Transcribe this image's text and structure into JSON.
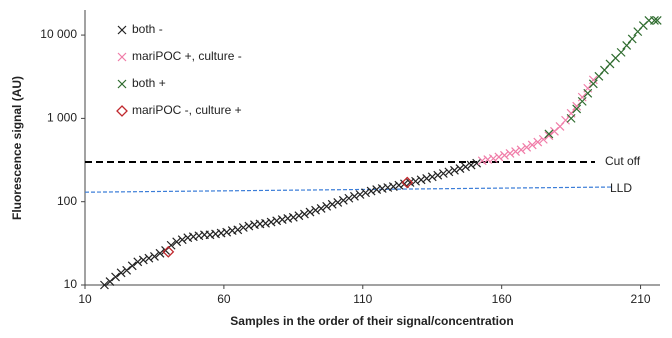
{
  "chart_data": {
    "type": "scatter",
    "x_label": "Samples in the order of their signal/concentration",
    "y_label": "Fluorescence signal (AU)",
    "xlim": [
      10,
      217
    ],
    "xticks": [
      10,
      60,
      110,
      160,
      210
    ],
    "ylim": [
      10,
      20000
    ],
    "log_y": true,
    "yticks": [
      10,
      100,
      {
        "value": 1000,
        "label": "1 000"
      },
      {
        "value": 10000,
        "label": "10 000"
      }
    ],
    "legend": "upper left",
    "series": [
      {
        "name": "both -",
        "color": "#222222",
        "marker": "x",
        "x": [
          17,
          19,
          21,
          23,
          25,
          27,
          29,
          31,
          33,
          35,
          37,
          39,
          41,
          43,
          45,
          47,
          49,
          51,
          53,
          55,
          57,
          59,
          61,
          63,
          65,
          67,
          69,
          71,
          73,
          75,
          77,
          79,
          81,
          83,
          85,
          87,
          89,
          91,
          93,
          95,
          97,
          99,
          101,
          103,
          105,
          107,
          109,
          111,
          113,
          115,
          117,
          119,
          121,
          123,
          125,
          127,
          129,
          131,
          133,
          135,
          137,
          139,
          141,
          143,
          145,
          147,
          149,
          151
        ],
        "values": [
          10,
          11,
          12.5,
          14,
          15,
          17,
          19,
          20,
          21,
          22,
          24,
          26,
          30,
          33,
          35,
          37,
          38,
          39,
          40,
          40,
          41,
          42,
          43,
          45,
          46,
          49,
          51,
          53,
          54,
          55,
          57,
          59,
          61,
          63,
          65,
          68,
          71,
          75,
          79,
          83,
          88,
          93,
          98,
          104,
          110,
          116,
          122,
          128,
          134,
          140,
          144,
          148,
          152,
          158,
          164,
          170,
          176,
          183,
          190,
          199,
          208,
          218,
          228,
          238,
          250,
          262,
          275,
          290
        ]
      },
      {
        "name": "mariPOC +, culture -",
        "color": "#f07ca8",
        "marker": "x",
        "x": [
          153,
          155,
          157,
          159,
          161,
          163,
          165,
          167,
          169,
          171,
          173,
          175,
          177,
          179,
          181,
          183,
          185,
          187,
          189,
          191,
          193
        ],
        "values": [
          310,
          320,
          330,
          345,
          360,
          380,
          400,
          420,
          450,
          480,
          520,
          560,
          620,
          700,
          800,
          950,
          1150,
          1400,
          1800,
          2300,
          2900
        ]
      },
      {
        "name": "both +",
        "color": "#2e6b2e",
        "marker": "x",
        "x": [
          177,
          185,
          187,
          189,
          191,
          193,
          195,
          197,
          199,
          201,
          203,
          205,
          207,
          209,
          211,
          213,
          215,
          216
        ],
        "values": [
          650,
          1000,
          1300,
          1600,
          2000,
          2600,
          3200,
          3800,
          4500,
          5300,
          6200,
          7500,
          9000,
          11000,
          13000,
          15000,
          15000,
          15000
        ]
      },
      {
        "name": "mariPOC -, culture +",
        "color": "#c0282d",
        "marker": "diamond",
        "x": [
          40,
          126
        ],
        "values": [
          25,
          170
        ]
      }
    ],
    "cutoff": {
      "label": "Cut off",
      "value": 300,
      "color": "#000000"
    },
    "lld": {
      "label": "LLD",
      "x": [
        10,
        200
      ],
      "values": [
        130,
        150
      ],
      "color": "#3b7dd8"
    }
  }
}
